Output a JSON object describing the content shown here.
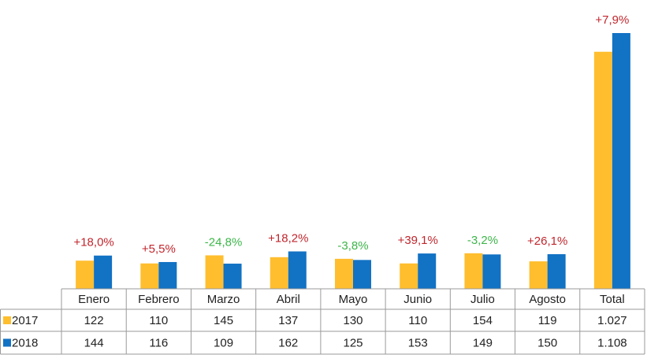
{
  "chart_data": {
    "type": "bar",
    "categories": [
      "Enero",
      "Febrero",
      "Marzo",
      "Abril",
      "Mayo",
      "Junio",
      "Julio",
      "Agosto",
      "Total"
    ],
    "series": [
      {
        "name": "2017",
        "color": "#FFBE2E",
        "values": [
          122,
          110,
          145,
          137,
          130,
          110,
          154,
          119,
          1027
        ],
        "value_labels": [
          "122",
          "110",
          "145",
          "137",
          "130",
          "110",
          "154",
          "119",
          "1.027"
        ]
      },
      {
        "name": "2018",
        "color": "#1272C4",
        "values": [
          144,
          116,
          109,
          162,
          125,
          153,
          149,
          150,
          1108
        ],
        "value_labels": [
          "144",
          "116",
          "109",
          "162",
          "125",
          "153",
          "149",
          "150",
          "1.108"
        ]
      }
    ],
    "annotations": [
      "+18,0%",
      "+5,5%",
      "-24,8%",
      "+18,2%",
      "-3,8%",
      "+39,1%",
      "-3,2%",
      "+26,1%",
      "+7,9%"
    ],
    "annotation_colors": [
      "#C0262D",
      "#C0262D",
      "#3DB54A",
      "#C0262D",
      "#3DB54A",
      "#C0262D",
      "#3DB54A",
      "#C0262D",
      "#C0262D"
    ],
    "ylim": [
      0,
      1108
    ]
  }
}
